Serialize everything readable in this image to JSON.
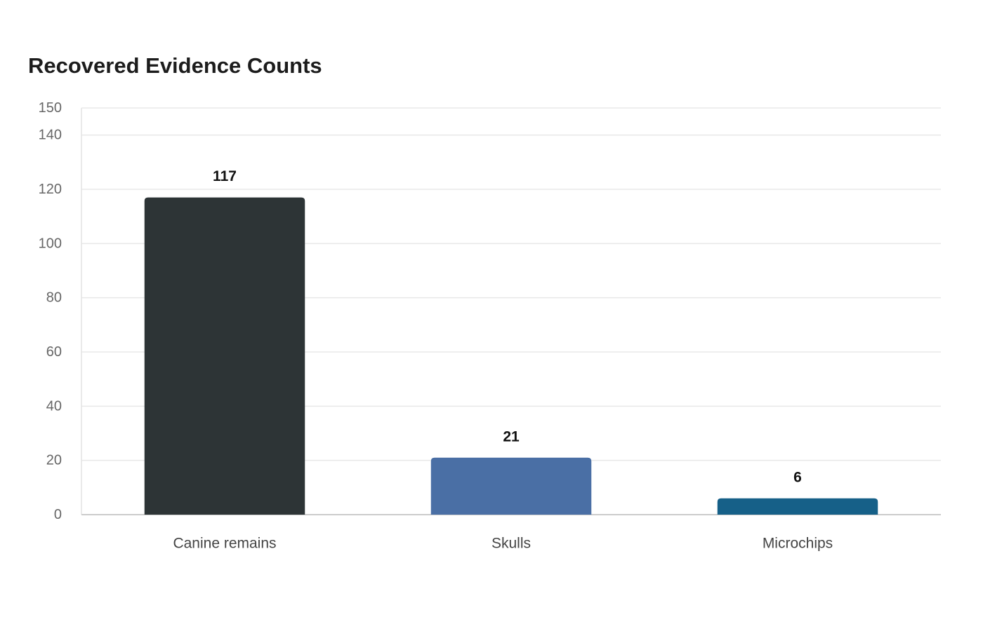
{
  "chart_data": {
    "type": "bar",
    "title": "Recovered Evidence Counts",
    "xlabel": "",
    "ylabel": "",
    "categories": [
      "Canine remains",
      "Skulls",
      "Microchips"
    ],
    "values": [
      117,
      21,
      6
    ],
    "data_labels": [
      "117",
      "21",
      "6"
    ],
    "bar_colors": [
      "#2d3436",
      "#4a6fa5",
      "#166088"
    ],
    "ylim": [
      0,
      150
    ],
    "y_ticks": [
      0,
      20,
      40,
      60,
      80,
      100,
      120,
      140,
      150
    ],
    "grid": true,
    "legend": "none"
  },
  "colors": {
    "grid": "#e8e8e8",
    "axis": "#cccccc"
  }
}
